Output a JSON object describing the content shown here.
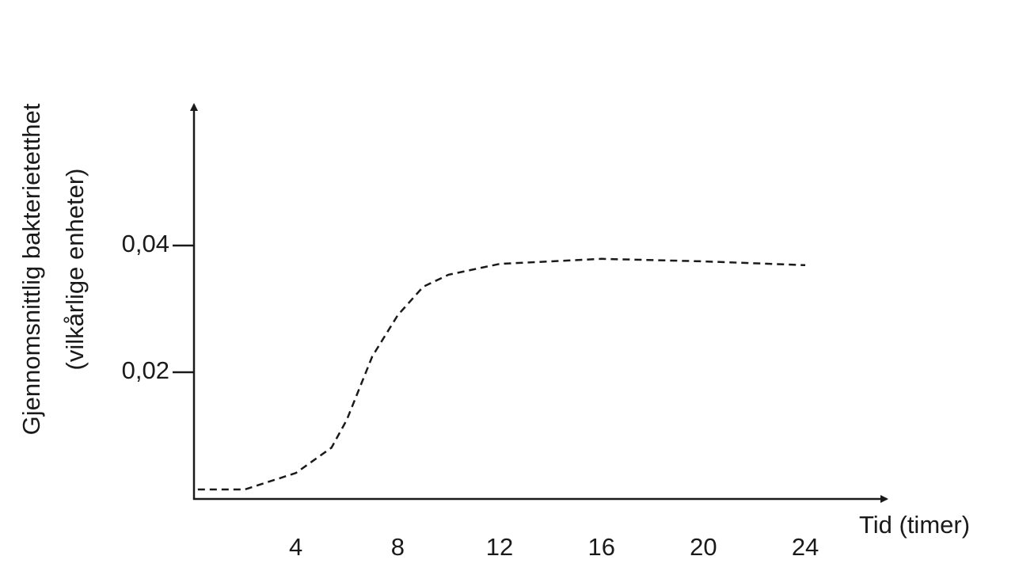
{
  "chart_data": {
    "type": "line",
    "xlabel": "Tid (timer)",
    "ylabel": [
      "Gjennomsnittlig bakterietetthet",
      "(vilkårlige enheter)"
    ],
    "x": [
      0.15,
      2,
      4,
      5.4,
      6,
      7,
      8,
      9,
      10,
      12,
      16,
      20,
      24
    ],
    "series": [
      {
        "color": "#1a1a1a",
        "values": [
          0.0015,
          0.0015,
          0.0041,
          0.0081,
          0.0125,
          0.0225,
          0.029,
          0.0335,
          0.0354,
          0.0371,
          0.0379,
          0.0375,
          0.0369
        ]
      }
    ],
    "xlim": [
      0,
      27.2
    ],
    "ylim": [
      0,
      0.0625
    ],
    "xticks": [
      4,
      8,
      12,
      16,
      20,
      24
    ],
    "yticks": [
      {
        "value": 0.02,
        "label": "0,02"
      },
      {
        "value": 0.04,
        "label": "0,04"
      }
    ],
    "dashed": true
  }
}
